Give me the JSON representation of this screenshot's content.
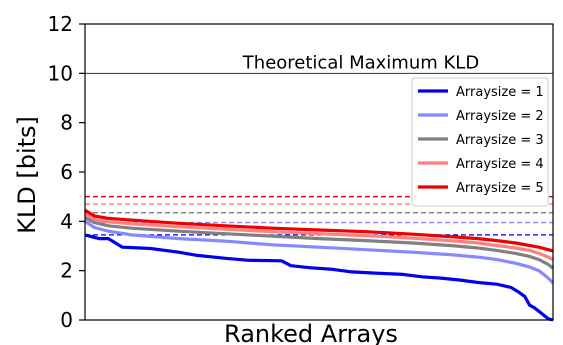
{
  "chart_data": {
    "type": "line",
    "xlabel": "Ranked Arrays",
    "ylabel": "KLD [bits]",
    "ylim": [
      0,
      12
    ],
    "yticks": [
      0,
      2,
      4,
      6,
      8,
      10,
      12
    ],
    "xlim": [
      0,
      100
    ],
    "grid": false,
    "legend_position": "right",
    "annotation": {
      "text": "Theoretical Maximum KLD",
      "y": 10
    },
    "series": [
      {
        "name": "Arraysize = 1",
        "color": "#0000ee",
        "threshold": 3.45,
        "x": [
          0,
          3,
          5,
          8,
          14,
          20,
          24,
          30,
          35,
          42,
          44,
          48,
          53,
          57,
          62,
          68,
          72,
          76,
          80,
          84,
          88,
          91,
          92.5,
          94,
          95,
          96,
          97,
          98,
          99,
          100
        ],
        "y": [
          3.45,
          3.3,
          3.3,
          2.95,
          2.9,
          2.75,
          2.62,
          2.5,
          2.42,
          2.4,
          2.2,
          2.12,
          2.05,
          1.95,
          1.9,
          1.85,
          1.75,
          1.7,
          1.62,
          1.52,
          1.45,
          1.32,
          1.15,
          0.95,
          0.6,
          0.5,
          0.35,
          0.2,
          0.05,
          0.0
        ]
      },
      {
        "name": "Arraysize = 2",
        "color": "#8888ff",
        "threshold": 3.95,
        "x": [
          0,
          2,
          5,
          10,
          20,
          30,
          40,
          50,
          60,
          70,
          78,
          84,
          88,
          92,
          95,
          97,
          99,
          100
        ],
        "y": [
          4.0,
          3.75,
          3.6,
          3.45,
          3.3,
          3.2,
          3.05,
          2.95,
          2.85,
          2.75,
          2.65,
          2.55,
          2.45,
          2.3,
          2.15,
          2.0,
          1.7,
          1.5
        ]
      },
      {
        "name": "Arraysize = 3",
        "color": "#808080",
        "threshold": 4.35,
        "x": [
          0,
          2,
          5,
          10,
          20,
          30,
          40,
          50,
          60,
          70,
          78,
          84,
          88,
          92,
          95,
          97,
          99,
          100
        ],
        "y": [
          4.15,
          3.95,
          3.82,
          3.72,
          3.6,
          3.5,
          3.4,
          3.3,
          3.22,
          3.12,
          3.02,
          2.92,
          2.82,
          2.7,
          2.58,
          2.45,
          2.25,
          2.1
        ]
      },
      {
        "name": "Arraysize = 4",
        "color": "#ff8080",
        "threshold": 4.7,
        "x": [
          0,
          2,
          5,
          10,
          20,
          30,
          40,
          50,
          60,
          70,
          78,
          84,
          88,
          92,
          95,
          97,
          99,
          100
        ],
        "y": [
          4.3,
          4.08,
          3.98,
          3.9,
          3.78,
          3.68,
          3.58,
          3.5,
          3.42,
          3.32,
          3.22,
          3.12,
          3.02,
          2.92,
          2.82,
          2.7,
          2.55,
          2.45
        ]
      },
      {
        "name": "Arraysize = 5",
        "color": "#ee0000",
        "threshold": 5.0,
        "x": [
          0,
          2,
          5,
          10,
          20,
          30,
          40,
          50,
          60,
          70,
          78,
          84,
          88,
          92,
          95,
          97,
          99,
          100
        ],
        "y": [
          4.45,
          4.22,
          4.12,
          4.05,
          3.92,
          3.82,
          3.72,
          3.65,
          3.58,
          3.48,
          3.38,
          3.3,
          3.22,
          3.12,
          3.02,
          2.95,
          2.85,
          2.8
        ]
      }
    ]
  }
}
